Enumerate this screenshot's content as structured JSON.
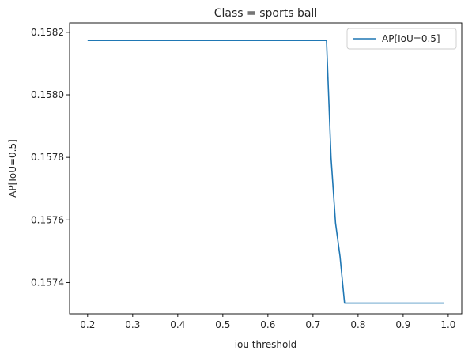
{
  "chart_data": {
    "type": "line",
    "title": "Class = sports ball",
    "xlabel": "iou threshold",
    "ylabel": "AP[IoU=0.5]",
    "xlim": [
      0.16,
      1.03
    ],
    "ylim": [
      0.1573,
      0.15823
    ],
    "xticks": [
      0.2,
      0.3,
      0.4,
      0.5,
      0.6,
      0.7,
      0.8,
      0.9,
      1.0
    ],
    "xtick_labels": [
      "0.2",
      "0.3",
      "0.4",
      "0.5",
      "0.6",
      "0.7",
      "0.8",
      "0.9",
      "1.0"
    ],
    "yticks": [
      0.1574,
      0.1576,
      0.1578,
      0.158,
      0.1582
    ],
    "ytick_labels": [
      "0.1574",
      "0.1576",
      "0.1578",
      "0.1580",
      "0.1582"
    ],
    "grid": false,
    "legend_position": "top-right",
    "series": [
      {
        "name": "AP[IoU=0.5]",
        "color": "#1f77b4",
        "x": [
          0.2,
          0.21,
          0.22,
          0.23,
          0.24,
          0.25,
          0.26,
          0.27,
          0.28,
          0.29,
          0.3,
          0.31,
          0.32,
          0.33,
          0.34,
          0.35,
          0.36,
          0.37,
          0.38,
          0.39,
          0.4,
          0.41,
          0.42,
          0.43,
          0.44,
          0.45,
          0.46,
          0.47,
          0.48,
          0.49,
          0.5,
          0.51,
          0.52,
          0.53,
          0.54,
          0.55,
          0.56,
          0.57,
          0.58,
          0.59,
          0.6,
          0.61,
          0.62,
          0.63,
          0.64,
          0.65,
          0.66,
          0.67,
          0.68,
          0.69,
          0.7,
          0.71,
          0.72,
          0.73,
          0.74,
          0.75,
          0.76,
          0.77,
          0.78,
          0.79,
          0.8,
          0.81,
          0.82,
          0.83,
          0.84,
          0.85,
          0.86,
          0.87,
          0.88,
          0.89,
          0.9,
          0.91,
          0.92,
          0.93,
          0.94,
          0.95,
          0.96,
          0.97,
          0.98,
          0.99
        ],
        "y": [
          0.158174,
          0.158174,
          0.158174,
          0.158174,
          0.158174,
          0.158174,
          0.158174,
          0.158174,
          0.158174,
          0.158174,
          0.158174,
          0.158174,
          0.158174,
          0.158174,
          0.158174,
          0.158174,
          0.158174,
          0.158174,
          0.158174,
          0.158174,
          0.158174,
          0.158174,
          0.158174,
          0.158174,
          0.158174,
          0.158174,
          0.158174,
          0.158174,
          0.158174,
          0.158174,
          0.158174,
          0.158174,
          0.158174,
          0.158174,
          0.158174,
          0.158174,
          0.158174,
          0.158174,
          0.158174,
          0.158174,
          0.158174,
          0.158174,
          0.158174,
          0.158174,
          0.158174,
          0.158174,
          0.158174,
          0.158174,
          0.158174,
          0.158174,
          0.158174,
          0.158174,
          0.158174,
          0.158174,
          0.1578,
          0.15759,
          0.157483,
          0.157334,
          0.157334,
          0.157334,
          0.157334,
          0.157334,
          0.157334,
          0.157334,
          0.157334,
          0.157334,
          0.157334,
          0.157334,
          0.157334,
          0.157334,
          0.157334,
          0.157334,
          0.157334,
          0.157334,
          0.157334,
          0.157334,
          0.157334,
          0.157334,
          0.157334,
          0.157334
        ]
      }
    ]
  }
}
